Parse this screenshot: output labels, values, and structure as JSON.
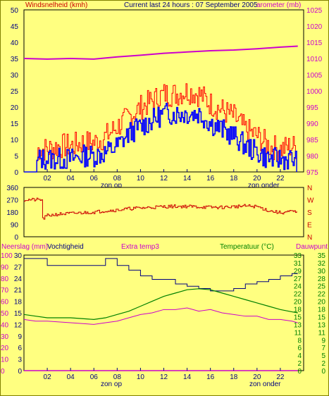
{
  "header": {
    "wind_label": "Windsnelheid (kmh)",
    "title": "Current last 24 hours : 07 September 2005",
    "baro_label": "arometer (mb)"
  },
  "colors": {
    "background": "#ffff80",
    "plot_bg": "#ffff80",
    "wind_gust": "#ff0000",
    "wind_avg": "#0000ff",
    "barometer": "#cc00cc",
    "direction": "#cc0000",
    "humidity": "#000080",
    "temperature": "#008000",
    "dewpoint": "#cc00cc",
    "rain": "#cc00cc",
    "axis_blue": "#000080",
    "axis_magenta": "#cc00cc",
    "axis_green": "#008000"
  },
  "x_ticks": [
    "02",
    "04",
    "06",
    "08",
    "10",
    "12",
    "14",
    "16",
    "18",
    "20",
    "22"
  ],
  "sun_labels": {
    "sunrise": "zon op",
    "sunset": "zon onder"
  },
  "chart_data": [
    {
      "type": "line",
      "title": "Current last 24 hours : 07 September 2005",
      "ylabel_left": "Windsnelheid (kmh)",
      "ylabel_right": "arometer (mb)",
      "y_left_ticks": [
        "0",
        "5",
        "10",
        "15",
        "20",
        "25",
        "30",
        "35",
        "40",
        "45",
        "50"
      ],
      "y_right_ticks": [
        "975",
        "980",
        "985",
        "990",
        "995",
        "1000",
        "1005",
        "1010",
        "1015",
        "1020",
        "1025"
      ],
      "ylim_left": [
        0,
        50
      ],
      "ylim_right": [
        975,
        1025
      ],
      "series": [
        {
          "x": [
            0,
            1,
            1.2,
            2,
            3,
            4,
            5,
            6,
            7,
            8,
            9,
            10,
            11,
            12,
            13,
            14,
            15,
            16,
            17,
            18,
            19,
            20,
            21,
            22,
            23,
            23.5
          ],
          "values": [
            0,
            0,
            7,
            7,
            8,
            8,
            9,
            9,
            11,
            14,
            17,
            20,
            22,
            24,
            24,
            25,
            24,
            21,
            19,
            17,
            13,
            11,
            8,
            7,
            8,
            7
          ]
        },
        {
          "x": [
            0,
            1,
            1.2,
            2,
            3,
            4,
            5,
            6,
            7,
            8,
            9,
            10,
            11,
            12,
            13,
            14,
            15,
            16,
            17,
            18,
            19,
            20,
            21,
            22,
            23,
            23.5
          ],
          "values": [
            0,
            0,
            4,
            4,
            4,
            4,
            5,
            5,
            6,
            8,
            12,
            14,
            16,
            18,
            18,
            18,
            18,
            15,
            13,
            11,
            8,
            6,
            4,
            4,
            4,
            3
          ]
        },
        {
          "x": [
            0,
            2,
            4,
            6,
            8,
            10,
            12,
            14,
            16,
            18,
            20,
            22,
            23.5
          ],
          "values": [
            1010,
            1009.8,
            1010,
            1009.8,
            1010.5,
            1011,
            1011.6,
            1012,
            1012.4,
            1012.6,
            1013,
            1013.5,
            1013.8
          ]
        }
      ]
    },
    {
      "type": "line",
      "y_left_ticks": [
        "0",
        "90",
        "180",
        "270",
        "360"
      ],
      "y_right_ticks": [
        "N",
        "W",
        "S",
        "E",
        "N"
      ],
      "ylim": [
        0,
        360
      ],
      "series": [
        {
          "x": [
            0,
            1.5,
            1.6,
            2,
            3,
            4,
            5,
            6,
            7,
            8,
            9,
            10,
            11,
            12,
            13,
            14,
            15,
            16,
            17,
            18,
            19,
            20,
            21,
            22,
            23,
            23.5
          ],
          "values": [
            270,
            270,
            130,
            155,
            165,
            170,
            175,
            180,
            190,
            195,
            205,
            210,
            215,
            220,
            222,
            222,
            218,
            215,
            215,
            220,
            225,
            220,
            190,
            175,
            185,
            175
          ]
        }
      ]
    },
    {
      "type": "line",
      "labels": {
        "rain": "Neerslag (mm)",
        "humidity": "Vochtigheid",
        "extra_temp": "Extra temp3",
        "temperature": "Temperatuur (°C)",
        "dewpoint": "Dauwpunt"
      },
      "axis_rain_ticks": [
        "0",
        "10",
        "20",
        "30",
        "40",
        "50",
        "60",
        "70",
        "80",
        "90",
        "100"
      ],
      "axis_hum_ticks": [
        "0",
        "3",
        "6",
        "9",
        "12",
        "15",
        "18",
        "21",
        "24",
        "27",
        "30"
      ],
      "axis_temp_left_ticks": [
        "0",
        "2",
        "4",
        "6",
        "8",
        "11",
        "13",
        "15",
        "18",
        "20",
        "22",
        "24",
        "27",
        "29",
        "31",
        "33"
      ],
      "axis_temp_right_ticks": [
        "0",
        "2",
        "5",
        "7",
        "9",
        "11",
        "13",
        "15",
        "18",
        "20",
        "22",
        "25",
        "28",
        "30",
        "32",
        "35"
      ],
      "ylim_percent": [
        0,
        100
      ],
      "ylim_temp": [
        0,
        35
      ],
      "series": [
        {
          "x": [
            0,
            1.5,
            1.5,
            2,
            4,
            6,
            7,
            7,
            8,
            8,
            9,
            10,
            11,
            12,
            13,
            14,
            15,
            16,
            17,
            18,
            19,
            20,
            21,
            22,
            23,
            23.5
          ],
          "values": [
            97,
            97,
            97,
            91,
            91,
            91,
            91,
            97,
            97,
            91,
            87,
            82,
            79,
            79,
            75,
            73,
            71,
            69,
            69,
            71,
            75,
            77,
            79,
            82,
            84,
            84
          ]
        },
        {
          "x": [
            0,
            1,
            2,
            4,
            6,
            7,
            8,
            9,
            10,
            11,
            12,
            13,
            14,
            15,
            16,
            17,
            18,
            19,
            20,
            21,
            22,
            23,
            23.5
          ],
          "values": [
            17,
            16.5,
            16,
            16,
            15.5,
            16,
            17,
            18,
            19.5,
            21,
            22.5,
            23.5,
            24.5,
            24.8,
            24.5,
            23.5,
            22.5,
            21.5,
            20.5,
            19.5,
            18.5,
            17.8,
            17.5
          ]
        },
        {
          "x": [
            0,
            1,
            2,
            4,
            6,
            7,
            8,
            9,
            10,
            11,
            12,
            13,
            14,
            15,
            16,
            17,
            18,
            19,
            20,
            21,
            22,
            23,
            23.5
          ],
          "values": [
            15.5,
            15,
            15,
            14.5,
            14,
            14.5,
            15,
            16,
            17,
            17.5,
            18.5,
            18.5,
            19,
            18,
            18.5,
            17.5,
            17,
            16.5,
            16.5,
            15.5,
            15.5,
            15,
            14.5
          ]
        },
        {
          "x": [
            0,
            23.5
          ],
          "values": [
            0,
            0
          ]
        }
      ]
    }
  ]
}
